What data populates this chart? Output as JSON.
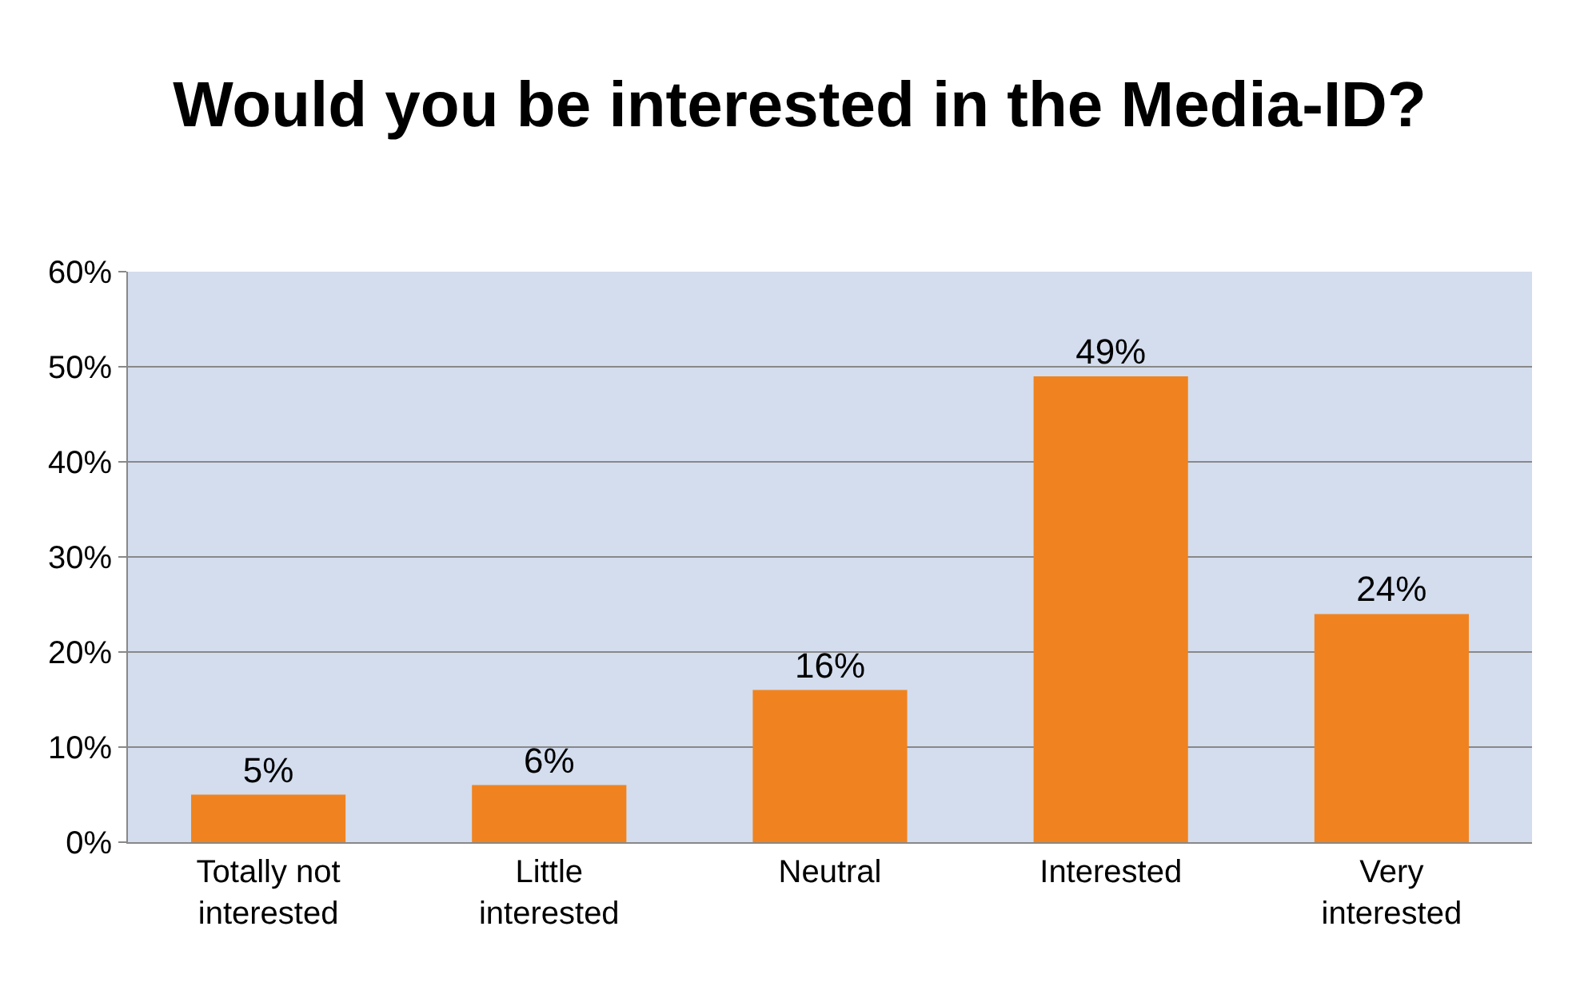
{
  "chart_data": {
    "type": "bar",
    "title": "Would you be interested in the Media-ID?",
    "categories": [
      "Totally not interested",
      "Little interested",
      "Neutral",
      "Interested",
      "Very interested"
    ],
    "values": [
      5,
      6,
      16,
      49,
      24
    ],
    "color": "#f0831f",
    "ylim": [
      0,
      60
    ],
    "yticks": [
      {
        "value": 0,
        "label": "0%"
      },
      {
        "value": 10,
        "label": "10%"
      },
      {
        "value": 20,
        "label": "20%"
      },
      {
        "value": 30,
        "label": "30%"
      },
      {
        "value": 40,
        "label": "40%"
      },
      {
        "value": 50,
        "label": "50%"
      },
      {
        "value": 60,
        "label": "60%"
      }
    ],
    "value_labels": [
      "5%",
      "6%",
      "16%",
      "49%",
      "24%"
    ],
    "grid": "y",
    "legend": false
  }
}
